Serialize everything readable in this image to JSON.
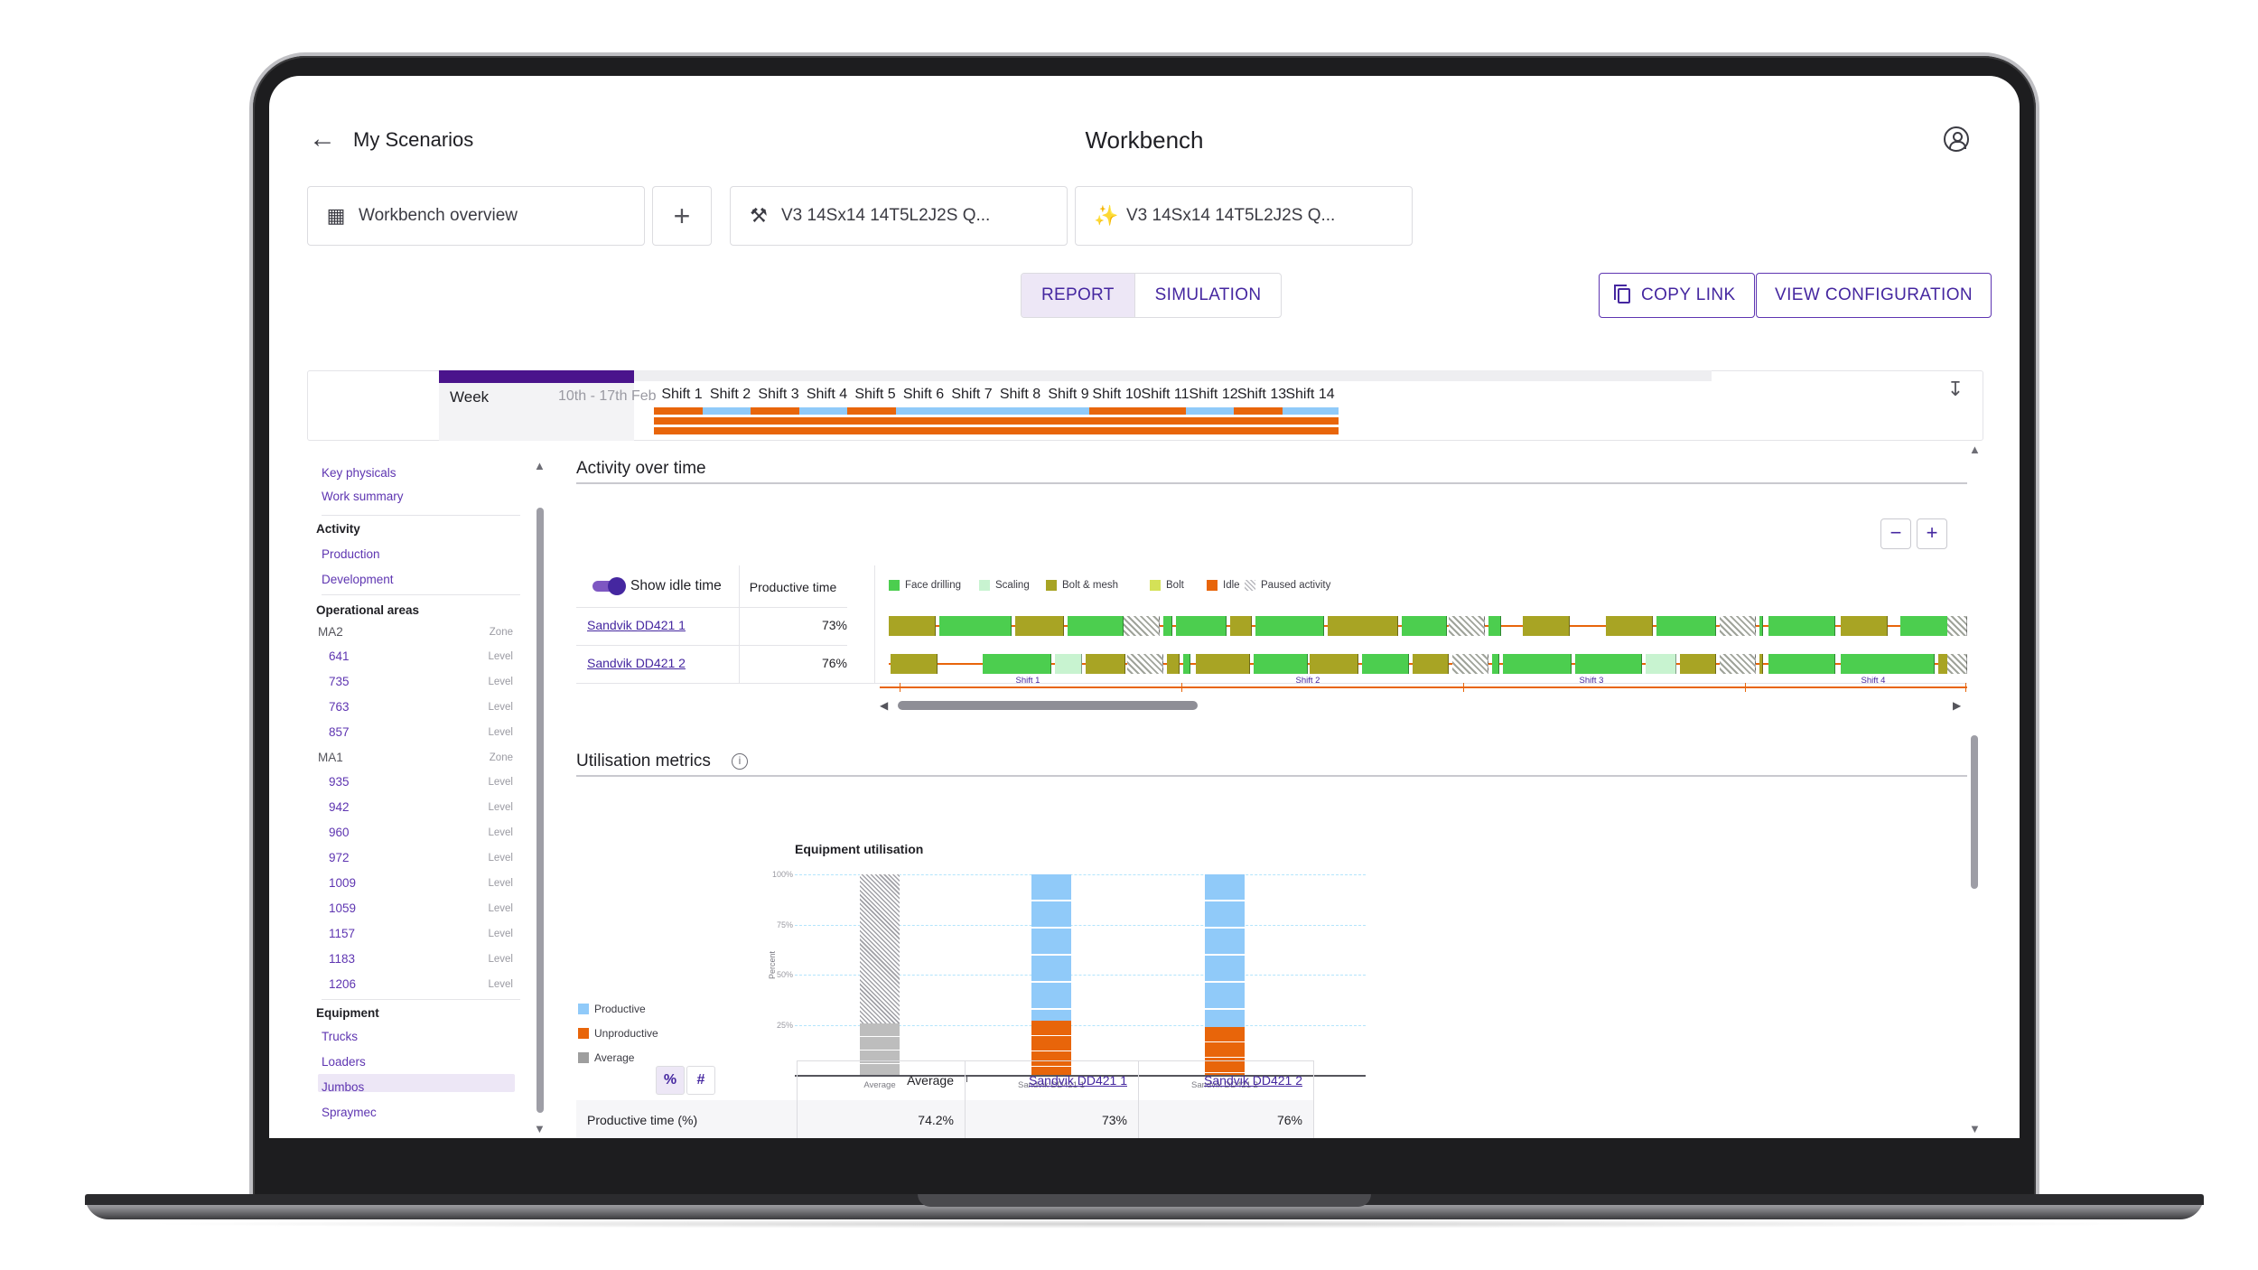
{
  "header": {
    "back_label": "My Scenarios",
    "title": "Workbench"
  },
  "tabs": [
    {
      "label": "Workbench overview",
      "icon": "table-grid-icon"
    },
    {
      "label": "+",
      "icon": "add-icon"
    },
    {
      "label": "V3 14Sx14 14T5L2J2S Q...",
      "icon": "tools-icon"
    },
    {
      "label": "V3 14Sx14 14T5L2J2S Q...",
      "icon": "sparkle-icon"
    }
  ],
  "modes": {
    "report": "REPORT",
    "simulation": "SIMULATION",
    "active": "REPORT"
  },
  "actions": {
    "copy_link": "COPY LINK",
    "view_configuration": "VIEW CONFIGURATION"
  },
  "timeline": {
    "week_label": "Week",
    "week_range": "10th - 17th Feb",
    "shifts": [
      "Shift 1",
      "Shift 2",
      "Shift 3",
      "Shift 4",
      "Shift 5",
      "Shift 6",
      "Shift 7",
      "Shift 8",
      "Shift 9",
      "Shift 10",
      "Shift 11",
      "Shift 12",
      "Shift 13",
      "Shift 14"
    ]
  },
  "sidebar": {
    "links_top": [
      "Key physicals",
      "Work summary"
    ],
    "activity": {
      "heading": "Activity",
      "items": [
        "Production",
        "Development"
      ]
    },
    "operational": {
      "heading": "Operational areas",
      "zone_label": "Zone",
      "level_label": "Level",
      "zones": [
        {
          "name": "MA2",
          "levels": [
            "641",
            "735",
            "763",
            "857"
          ]
        },
        {
          "name": "MA1",
          "levels": [
            "935",
            "942",
            "960",
            "972",
            "1009",
            "1059",
            "1157",
            "1183",
            "1206"
          ]
        }
      ]
    },
    "equipment": {
      "heading": "Equipment",
      "items": [
        "Trucks",
        "Loaders",
        "Jumbos",
        "Spraymec"
      ],
      "selected": "Jumbos"
    }
  },
  "activity": {
    "title": "Activity over time",
    "show_idle_label": "Show idle time",
    "productive_head": "Productive time",
    "legend": [
      {
        "label": "Face drilling",
        "color": "#4cce4f"
      },
      {
        "label": "Scaling",
        "color": "#c8f3d0"
      },
      {
        "label": "Bolt & mesh",
        "color": "#a8a424"
      },
      {
        "label": "Bolt",
        "color": "#d4e157"
      },
      {
        "label": "Idle",
        "color": "#e8650a"
      },
      {
        "label": "Paused activity",
        "color": "hatched"
      }
    ],
    "rows": [
      {
        "name": "Sandvik DD421 1",
        "productive": "73%"
      },
      {
        "name": "Sandvik DD421 2",
        "productive": "76%"
      }
    ],
    "shift_ticks": [
      "Shift 1",
      "Shift 2",
      "Shift 3",
      "Shift 4"
    ]
  },
  "utilisation": {
    "title": "Utilisation metrics",
    "legend": [
      "Productive",
      "Unproductive",
      "Average"
    ],
    "table": {
      "headers": [
        "Average",
        "Sandvik DD421 1",
        "Sandvik DD421 2"
      ],
      "row_label": "Productive time (%)",
      "row_values": [
        "74.2%",
        "73%",
        "76%"
      ]
    }
  },
  "chart_data": {
    "type": "bar",
    "title": "Equipment utilisation",
    "ylabel": "Percent",
    "categories": [
      "Average",
      "Sandvik DD421 1",
      "Sandvik DD421 2"
    ],
    "series": [
      {
        "name": "Productive",
        "values": [
          74.2,
          73,
          76
        ]
      },
      {
        "name": "Unproductive",
        "values": [
          25.8,
          27,
          24
        ]
      }
    ],
    "yticks": [
      "100%",
      "75%",
      "50%",
      "25%"
    ],
    "ylim": [
      0,
      100
    ]
  }
}
